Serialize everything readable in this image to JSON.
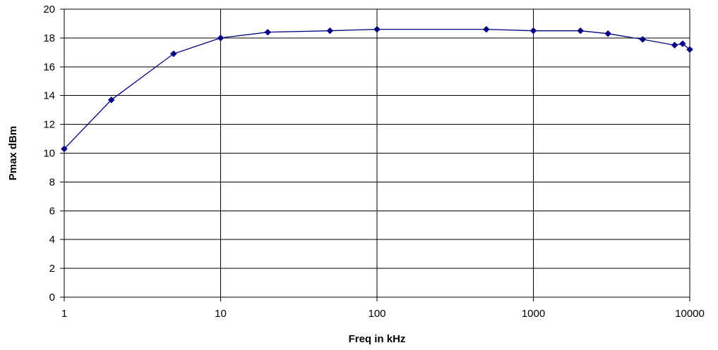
{
  "chart_data": {
    "type": "line",
    "title": "",
    "xlabel": "Freq in kHz",
    "ylabel": "Pmax dBm",
    "x_scale": "log",
    "xlim": [
      1,
      10000
    ],
    "ylim": [
      0,
      20
    ],
    "x_ticks": [
      1,
      10,
      100,
      1000,
      10000
    ],
    "x_tick_labels": [
      "1",
      "10",
      "100",
      "1000",
      "10000"
    ],
    "y_ticks": [
      0,
      2,
      4,
      6,
      8,
      10,
      12,
      14,
      16,
      18,
      20
    ],
    "y_tick_labels": [
      "0",
      "2",
      "4",
      "6",
      "8",
      "10",
      "12",
      "14",
      "16",
      "18",
      "20"
    ],
    "grid": true,
    "legend": "none",
    "series": [
      {
        "color": "#000080",
        "marker": "diamond",
        "x": [
          1,
          2,
          5,
          10,
          20,
          50,
          100,
          500,
          1000,
          2000,
          3000,
          5000,
          8000,
          9000,
          10000
        ],
        "y": [
          10.3,
          13.7,
          16.9,
          18.0,
          18.4,
          18.5,
          18.6,
          18.6,
          18.5,
          18.5,
          18.3,
          17.9,
          17.5,
          17.6,
          17.2
        ]
      }
    ]
  }
}
